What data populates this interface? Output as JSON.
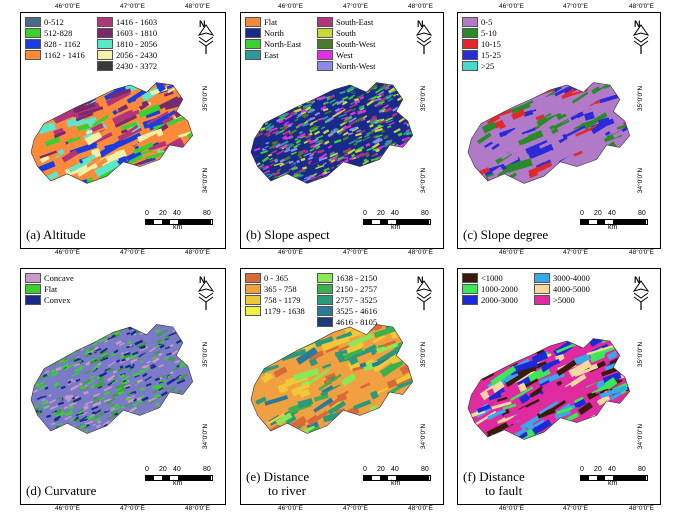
{
  "x_ticks": [
    "46°0'0\"E",
    "47°0'0\"E",
    "48°0'0\"E"
  ],
  "y_ticks": [
    "35°0'0\"N",
    "34°0'0\"N"
  ],
  "north_label": "N",
  "scale": {
    "labels": [
      "0",
      "20",
      "40",
      "80"
    ],
    "unit": "km"
  },
  "panels": [
    {
      "id": "altitude",
      "caption": "(a) Altitude",
      "columns": 2,
      "legend": [
        {
          "label": "0-512",
          "color": "#4a6a8a"
        },
        {
          "label": "1416 - 1603",
          "color": "#b0357a"
        },
        {
          "label": "512-828",
          "color": "#3ad030"
        },
        {
          "label": "1603 - 1810",
          "color": "#7a2a6a"
        },
        {
          "label": "828 - 1162",
          "color": "#1b3de0"
        },
        {
          "label": "1810 - 2056",
          "color": "#5ce8c8"
        },
        {
          "label": "1162 - 1416",
          "color": "#ff8a3a"
        },
        {
          "label": "2056 - 2430",
          "color": "#f4f0a8"
        },
        {
          "label": "",
          "color": ""
        },
        {
          "label": "2430 - 3372",
          "color": "#3a3a3a"
        }
      ],
      "map_colors": [
        "#ff8a3a",
        "#b0357a",
        "#7a2a6a",
        "#1b3de0",
        "#3ad030",
        "#5ce8c8",
        "#f4f0a8"
      ]
    },
    {
      "id": "slope-aspect",
      "caption": "(b) Slope aspect",
      "columns": 2,
      "legend": [
        {
          "label": "Flat",
          "color": "#f08a3a"
        },
        {
          "label": "South-East",
          "color": "#b0357a"
        },
        {
          "label": "North",
          "color": "#1a2a8a"
        },
        {
          "label": "South",
          "color": "#c8d838"
        },
        {
          "label": "North-East",
          "color": "#3ad030"
        },
        {
          "label": "South-West",
          "color": "#4a7a2a"
        },
        {
          "label": "East",
          "color": "#2a9a9a"
        },
        {
          "label": "West",
          "color": "#e030e0"
        },
        {
          "label": "",
          "color": ""
        },
        {
          "label": "North-West",
          "color": "#8a8ae8"
        }
      ],
      "map_colors": [
        "#1a2a8a",
        "#3ad030",
        "#2a9a9a",
        "#b0357a",
        "#c8d838",
        "#4a7a2a",
        "#e030e0",
        "#8a8ae8"
      ]
    },
    {
      "id": "slope-degree",
      "caption": "(c) Slope degree",
      "columns": 1,
      "legend": [
        {
          "label": "0-5",
          "color": "#b07ac8"
        },
        {
          "label": "5-10",
          "color": "#2a8a2a"
        },
        {
          "label": "10-15",
          "color": "#e02a2a"
        },
        {
          "label": "15-25",
          "color": "#2a2ad8"
        },
        {
          "label": ">25",
          "color": "#4ad8c8"
        }
      ],
      "map_colors": [
        "#b07ac8",
        "#b07ac8",
        "#b07ac8",
        "#2a8a2a",
        "#e02a2a",
        "#2a2ad8"
      ]
    },
    {
      "id": "curvature",
      "caption": "(d) Curvature",
      "columns": 1,
      "legend": [
        {
          "label": "Concave",
          "color": "#c89ac8"
        },
        {
          "label": "Flat",
          "color": "#3ad030"
        },
        {
          "label": "Convex",
          "color": "#1a2a8a"
        }
      ],
      "map_colors": [
        "#7a7ac8",
        "#1a2a8a",
        "#3aa03a",
        "#3ad030",
        "#c89ac8"
      ]
    },
    {
      "id": "distance-to-river",
      "caption": "(e) Distance\nto river",
      "columns": 2,
      "legend": [
        {
          "label": "0 - 365",
          "color": "#d86a3a"
        },
        {
          "label": "1638 - 2150",
          "color": "#8ae858"
        },
        {
          "label": "365 - 758",
          "color": "#f0a040"
        },
        {
          "label": "2150 - 2757",
          "color": "#3ab050"
        },
        {
          "label": "758 - 1179",
          "color": "#f0c838"
        },
        {
          "label": "2757 - 3525",
          "color": "#2a9a7a"
        },
        {
          "label": "1179 - 1638",
          "color": "#f0f040"
        },
        {
          "label": "3525 - 4616",
          "color": "#2a7a9a"
        },
        {
          "label": "",
          "color": ""
        },
        {
          "label": "4616 - 8105",
          "color": "#1a3a7a"
        }
      ],
      "map_colors": [
        "#f0a040",
        "#d86a3a",
        "#f0c838",
        "#8ae858",
        "#3ab050",
        "#2a9a7a",
        "#2a7a9a"
      ]
    },
    {
      "id": "distance-to-fault",
      "caption": "(f) Distance\nto fault",
      "columns": 2,
      "legend": [
        {
          "label": "<1000",
          "color": "#3a1a0a"
        },
        {
          "label": "3000-4000",
          "color": "#3aa8e8"
        },
        {
          "label": "1000-2000",
          "color": "#3ae858"
        },
        {
          "label": "4000-5000",
          "color": "#f8d8a0"
        },
        {
          "label": "2000-3000",
          "color": "#1a2ad8"
        },
        {
          "label": ">5000",
          "color": "#e02aa0"
        }
      ],
      "map_colors": [
        "#e02aa0",
        "#3aa8e8",
        "#1a2ad8",
        "#3ae858",
        "#3a1a0a",
        "#f8d8a0"
      ]
    }
  ]
}
